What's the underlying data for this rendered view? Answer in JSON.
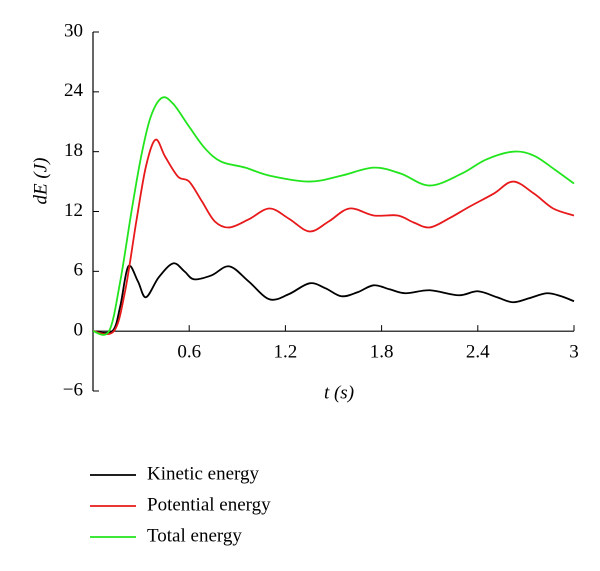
{
  "chart_data": {
    "type": "line",
    "xlabel": "t (s)",
    "ylabel": "dE (J)",
    "xlim": [
      0,
      3
    ],
    "xticks": [
      0.6,
      1.2,
      1.8,
      2.4,
      3
    ],
    "ylim": [
      -6,
      30
    ],
    "yticks": [
      {
        "value": -6,
        "label": "−6"
      },
      0,
      6,
      12,
      18,
      24,
      30
    ],
    "series": [
      {
        "name": "Kinetic energy",
        "color": "#000000",
        "x": [
          0,
          0.12,
          0.17,
          0.22,
          0.28,
          0.33,
          0.41,
          0.5,
          0.57,
          0.63,
          0.74,
          0.85,
          0.97,
          1.1,
          1.22,
          1.35,
          1.45,
          1.55,
          1.65,
          1.75,
          1.85,
          1.95,
          2.1,
          2.28,
          2.4,
          2.52,
          2.62,
          2.72,
          2.83,
          2.92,
          3
        ],
        "values": [
          0,
          0,
          2.5,
          6.5,
          5,
          3.4,
          5.4,
          6.8,
          6,
          5.2,
          5.6,
          6.5,
          5,
          3.2,
          3.7,
          4.8,
          4.3,
          3.5,
          3.9,
          4.6,
          4.2,
          3.8,
          4.1,
          3.6,
          4,
          3.4,
          2.9,
          3.3,
          3.8,
          3.5,
          3.0
        ]
      },
      {
        "name": "Potential energy",
        "color": "#e8191b",
        "x": [
          0,
          0.13,
          0.2,
          0.27,
          0.33,
          0.39,
          0.45,
          0.53,
          0.6,
          0.68,
          0.76,
          0.85,
          0.97,
          1.1,
          1.22,
          1.35,
          1.47,
          1.6,
          1.75,
          1.9,
          2.0,
          2.1,
          2.22,
          2.35,
          2.5,
          2.62,
          2.75,
          2.87,
          3
        ],
        "values": [
          0,
          0,
          4,
          11,
          16.5,
          19.2,
          17.5,
          15.5,
          15,
          13,
          11,
          10.4,
          11.2,
          12.3,
          11.3,
          10,
          11,
          12.3,
          11.6,
          11.6,
          10.9,
          10.4,
          11.3,
          12.5,
          13.8,
          15,
          13.8,
          12.3,
          11.6
        ]
      },
      {
        "name": "Total energy",
        "color": "#22e51d",
        "x": [
          0,
          0.1,
          0.17,
          0.24,
          0.3,
          0.36,
          0.43,
          0.5,
          0.6,
          0.7,
          0.8,
          0.95,
          1.1,
          1.35,
          1.55,
          1.75,
          1.92,
          2.1,
          2.3,
          2.45,
          2.62,
          2.75,
          2.88,
          3
        ],
        "values": [
          0,
          0,
          5,
          12,
          17.5,
          21.5,
          23.4,
          22.8,
          20.5,
          18.3,
          17,
          16.4,
          15.6,
          15,
          15.6,
          16.4,
          15.8,
          14.6,
          15.8,
          17.2,
          18,
          17.6,
          16.2,
          14.8
        ]
      }
    ]
  }
}
